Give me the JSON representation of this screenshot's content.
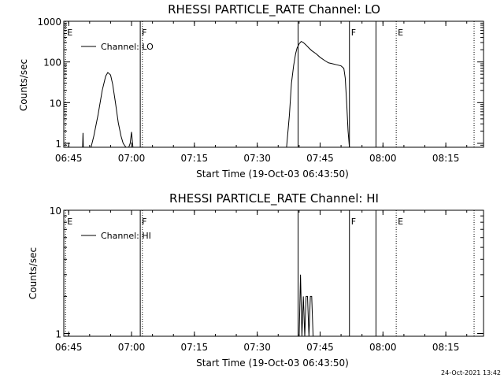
{
  "chart_data": [
    {
      "type": "line",
      "title": "RHESSI PARTICLE_RATE Channel: LO",
      "xlabel": "Start Time (19-Oct-03 06:43:50)",
      "ylabel": "Counts/sec",
      "yscale": "log",
      "ylim": [
        0.8,
        1000
      ],
      "xlim": [
        "06:43:50",
        "08:24:00"
      ],
      "x_ticks": [
        "06:45",
        "07:00",
        "07:15",
        "07:30",
        "07:45",
        "08:00",
        "08:15"
      ],
      "y_ticks": [
        "1",
        "10",
        "100",
        "1000"
      ],
      "legend": {
        "position": "top-left",
        "entries": [
          "Channel: LO"
        ]
      },
      "markers": [
        {
          "label": "E",
          "time": "06:44:15",
          "style": "dotted"
        },
        {
          "label": "F",
          "time": "07:02:05",
          "style": "solid"
        },
        {
          "label": "",
          "time": "07:02:35",
          "style": "dotted"
        },
        {
          "label": "",
          "time": "07:39:45",
          "style": "solid"
        },
        {
          "label": "F",
          "time": "07:52:00",
          "style": "solid"
        },
        {
          "label": "",
          "time": "07:58:20",
          "style": "solid"
        },
        {
          "label": "E",
          "time": "08:03:10",
          "style": "dotted"
        },
        {
          "label": "",
          "time": "08:21:45",
          "style": "dotted"
        }
      ],
      "series": [
        {
          "name": "Channel: LO",
          "segments": [
            {
              "x": [
                "06:48:20",
                "06:48:25",
                "06:48:30"
              ],
              "y": [
                0.8,
                1.8,
                0.8
              ]
            },
            {
              "x": [
                "06:50:20",
                "06:51:00",
                "06:52:00",
                "06:53:00",
                "06:53:50",
                "06:54:20",
                "06:55:00",
                "06:55:30",
                "06:56:10",
                "06:56:50",
                "06:57:30",
                "06:58:00",
                "06:58:40"
              ],
              "y": [
                0.8,
                1.5,
                5,
                20,
                45,
                55,
                48,
                28,
                10,
                3.2,
                1.5,
                1.0,
                0.8
              ]
            },
            {
              "x": [
                "06:59:20",
                "06:59:40",
                "07:00:00",
                "07:00:20"
              ],
              "y": [
                0.8,
                1.0,
                1.9,
                0.8
              ]
            },
            {
              "x": [
                "07:37:00",
                "07:37:40",
                "07:38:10",
                "07:38:40",
                "07:39:10",
                "07:39:30",
                "07:40:00",
                "07:40:30",
                "07:41:00",
                "07:41:40",
                "07:42:20",
                "07:43:00",
                "07:44:00",
                "07:45:00",
                "07:46:00",
                "07:47:00",
                "07:48:00",
                "07:49:00",
                "07:50:00",
                "07:50:40",
                "07:51:00",
                "07:51:20",
                "07:51:40",
                "07:52:00"
              ],
              "y": [
                0.8,
                5,
                30,
                80,
                160,
                220,
                280,
                320,
                300,
                260,
                220,
                190,
                160,
                130,
                110,
                95,
                90,
                85,
                80,
                70,
                40,
                10,
                2,
                0.8
              ]
            }
          ]
        }
      ]
    },
    {
      "type": "line",
      "title": "RHESSI PARTICLE_RATE Channel: HI",
      "xlabel": "Start Time (19-Oct-03 06:43:50)",
      "ylabel": "Counts/sec",
      "yscale": "log",
      "ylim": [
        0.95,
        10
      ],
      "xlim": [
        "06:43:50",
        "08:24:00"
      ],
      "x_ticks": [
        "06:45",
        "07:00",
        "07:15",
        "07:30",
        "07:45",
        "08:00",
        "08:15"
      ],
      "y_ticks": [
        "1",
        "10"
      ],
      "legend": {
        "position": "top-left",
        "entries": [
          "Channel: HI"
        ]
      },
      "markers": [
        {
          "label": "E",
          "time": "06:44:15",
          "style": "dotted"
        },
        {
          "label": "F",
          "time": "07:02:05",
          "style": "solid"
        },
        {
          "label": "",
          "time": "07:02:35",
          "style": "dotted"
        },
        {
          "label": "",
          "time": "07:39:45",
          "style": "solid"
        },
        {
          "label": "F",
          "time": "07:52:00",
          "style": "solid"
        },
        {
          "label": "",
          "time": "07:58:20",
          "style": "solid"
        },
        {
          "label": "E",
          "time": "08:03:10",
          "style": "dotted"
        },
        {
          "label": "",
          "time": "08:21:45",
          "style": "dotted"
        }
      ],
      "series": [
        {
          "name": "Channel: HI",
          "segments": [
            {
              "x": [
                "07:40:00",
                "07:40:20",
                "07:40:40",
                "07:41:00",
                "07:41:20",
                "07:41:40",
                "07:42:00",
                "07:42:20",
                "07:42:40",
                "07:43:00",
                "07:43:20",
                "07:43:40",
                "07:44:00"
              ],
              "y": [
                0.95,
                3.0,
                0.95,
                2.0,
                0.95,
                2.0,
                2.0,
                0.95,
                2.0,
                2.0,
                0.95,
                0.95,
                0.95
              ]
            }
          ]
        }
      ]
    }
  ],
  "footer": {
    "timestamp": "24-Oct-2021 13:42"
  }
}
